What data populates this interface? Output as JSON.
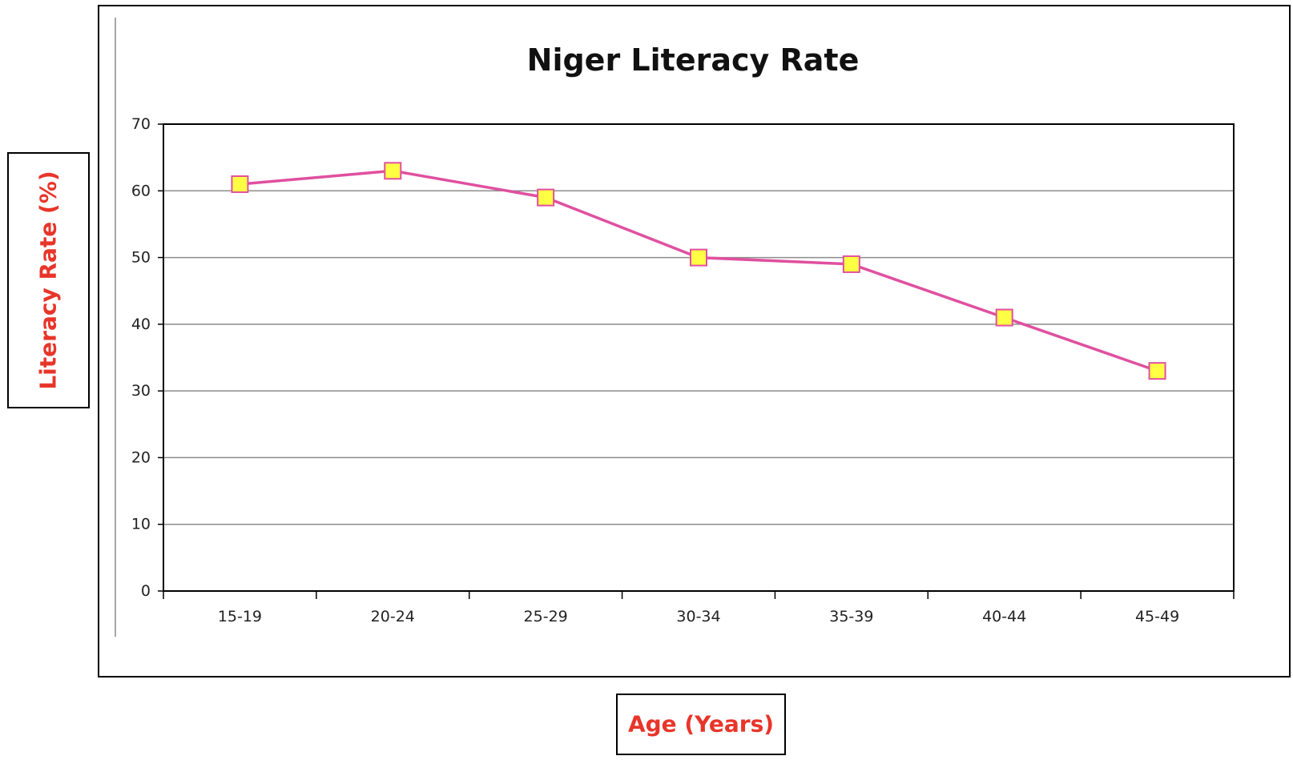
{
  "chart_data": {
    "type": "line",
    "title": "Niger Literacy Rate",
    "xlabel": "Age (Years)",
    "ylabel": "Literacy Rate (%)",
    "categories": [
      "15-19",
      "20-24",
      "25-29",
      "30-34",
      "35-39",
      "40-44",
      "45-49"
    ],
    "series": [
      {
        "values": [
          61,
          63,
          59,
          50,
          49,
          41,
          33
        ]
      }
    ],
    "ylim": [
      0,
      70
    ],
    "yticks": [
      0,
      10,
      20,
      30,
      40,
      50,
      60,
      70
    ],
    "grid": true,
    "legend": "none",
    "colors": {
      "line": "#e0509f",
      "marker_fill": "#ffff44",
      "marker_stroke": "#e0509f",
      "gridline": "#8c8c8c",
      "axis_label": "#e8352a",
      "title": "#111111"
    }
  }
}
